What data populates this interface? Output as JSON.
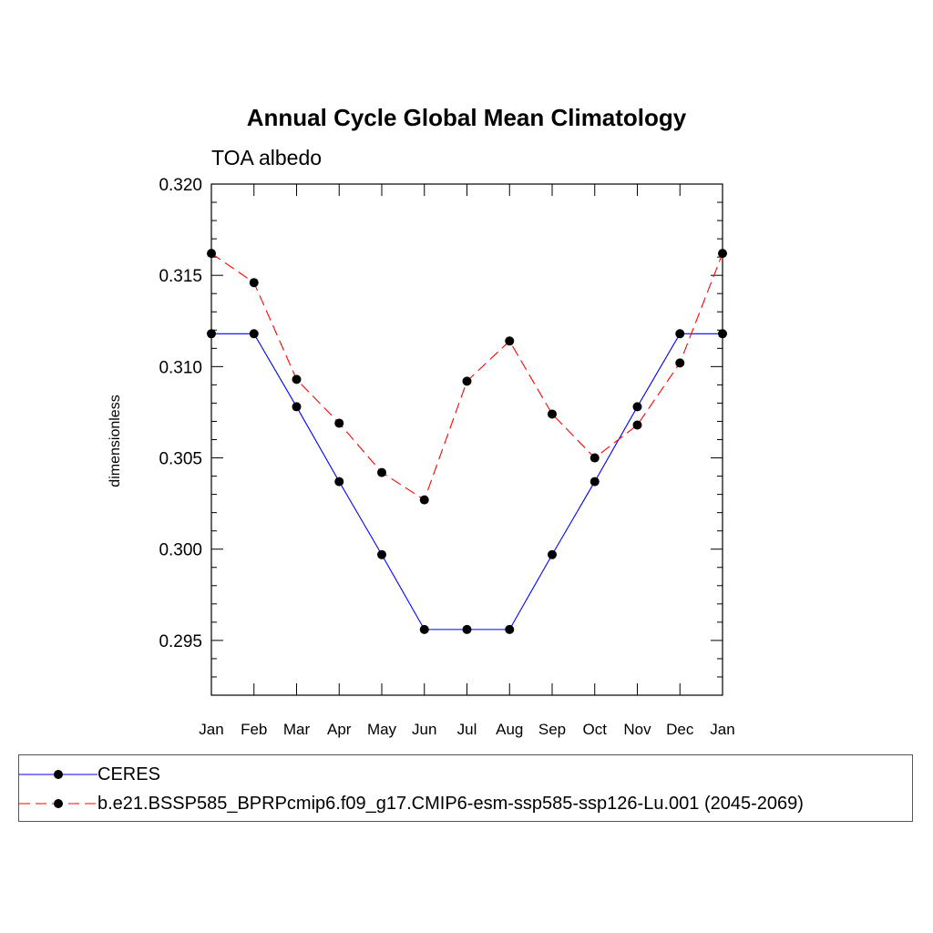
{
  "chart_data": {
    "type": "line",
    "title": "Annual Cycle Global Mean Climatology",
    "subtitle": "TOA albedo",
    "xlabel": "",
    "ylabel": "dimensionless",
    "categories": [
      "Jan",
      "Feb",
      "Mar",
      "Apr",
      "May",
      "Jun",
      "Jul",
      "Aug",
      "Sep",
      "Oct",
      "Nov",
      "Dec",
      "Jan"
    ],
    "ylim": [
      0.292,
      0.32
    ],
    "yticks": [
      "0.295",
      "0.300",
      "0.305",
      "0.310",
      "0.315",
      "0.320"
    ],
    "series": [
      {
        "name": "CERES",
        "color": "#0000ff",
        "dash": "solid",
        "values": [
          0.3118,
          0.3118,
          0.3078,
          0.3037,
          0.2997,
          0.2956,
          0.2956,
          0.2956,
          0.2997,
          0.3037,
          0.3078,
          0.3118,
          0.3118
        ]
      },
      {
        "name": "b.e21.BSSP585_BPRPcmip6.f09_g17.CMIP6-esm-ssp585-ssp126-Lu.001 (2045-2069)",
        "color": "#ff0000",
        "dash": "dashed",
        "values": [
          0.3162,
          0.3146,
          0.3093,
          0.3069,
          0.3042,
          0.3027,
          0.3092,
          0.3114,
          0.3074,
          0.305,
          0.3068,
          0.3102,
          0.3162
        ]
      }
    ]
  }
}
